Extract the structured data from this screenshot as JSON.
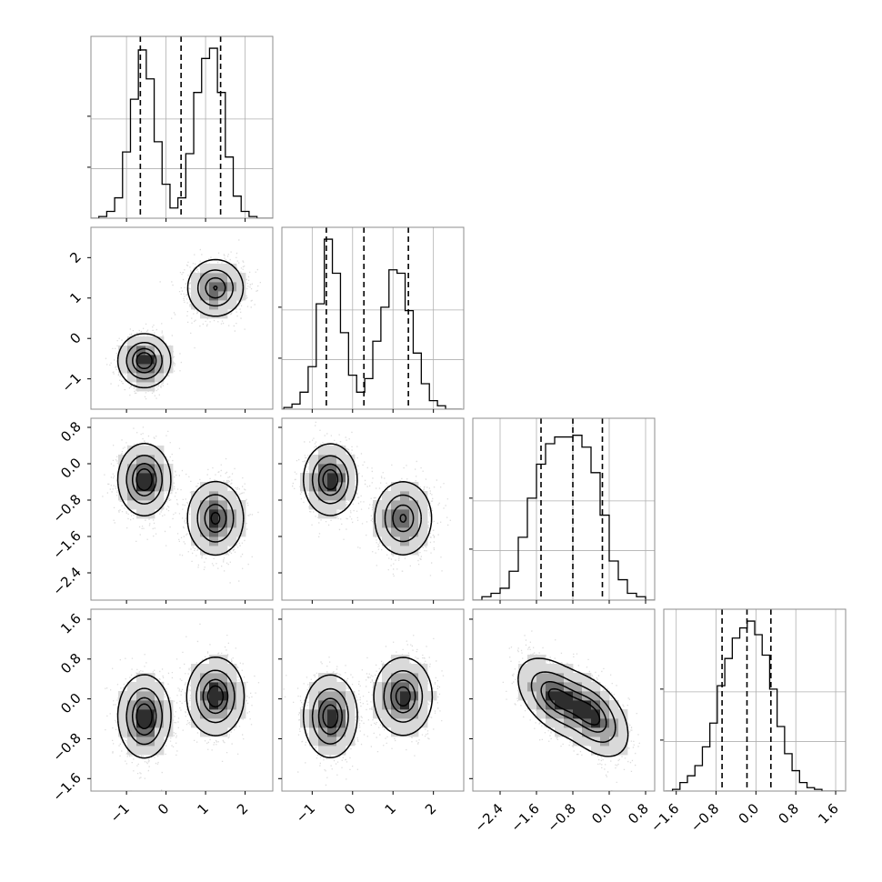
{
  "chart_data": {
    "type": "corner",
    "grid": true,
    "n_params": 4,
    "axis_ranges": [
      [
        -1.9,
        2.7
      ],
      [
        -1.75,
        2.75
      ],
      [
        -3.0,
        1.0
      ],
      [
        -1.85,
        1.8
      ]
    ],
    "ticks": [
      {
        "values": [
          -1,
          0,
          1,
          2
        ],
        "labels": [
          "−1",
          "0",
          "1",
          "2"
        ]
      },
      {
        "values": [
          -1,
          0,
          1,
          2
        ],
        "labels": [
          "−1",
          "0",
          "1",
          "2"
        ]
      },
      {
        "values": [
          -2.4,
          -1.6,
          -0.8,
          0.0,
          0.8
        ],
        "labels": [
          "−2.4",
          "−1.6",
          "−0.8",
          "0.0",
          "0.8"
        ]
      },
      {
        "values": [
          -1.6,
          -0.8,
          0.0,
          0.8,
          1.6
        ],
        "labels": [
          "−1.6",
          "−0.8",
          "0.0",
          "0.8",
          "1.6"
        ]
      }
    ],
    "quantiles": [
      [
        -0.65,
        0.38,
        1.38
      ],
      [
        -0.65,
        0.28,
        1.38
      ],
      [
        -1.5,
        -0.8,
        -0.15
      ],
      [
        -0.68,
        -0.18,
        0.3
      ]
    ],
    "modes": [
      {
        "weight": 0.5,
        "mean": [
          -0.55,
          -0.55,
          -0.35,
          -0.35
        ],
        "sd": [
          0.32,
          0.32,
          0.38,
          0.4
        ],
        "rho": {
          "0-1": 0.0,
          "0-2": 0.0,
          "0-3": 0.0,
          "1-2": 0.0,
          "1-3": 0.0,
          "2-3": -0.45
        }
      },
      {
        "weight": 0.5,
        "mean": [
          1.25,
          1.25,
          -1.2,
          0.05
        ],
        "sd": [
          0.35,
          0.35,
          0.4,
          0.38
        ],
        "rho": {
          "0-1": 0.0,
          "0-2": 0.0,
          "0-3": 0.0,
          "1-2": 0.0,
          "1-3": 0.0,
          "2-3": -0.45
        }
      }
    ],
    "histograms": [
      {
        "bin_centers": [
          -1.8,
          -1.6,
          -1.4,
          -1.2,
          -1.0,
          -0.8,
          -0.6,
          -0.4,
          -0.2,
          0.0,
          0.2,
          0.4,
          0.6,
          0.8,
          1.0,
          1.2,
          1.4,
          1.6,
          1.8,
          2.0,
          2.2,
          2.4,
          2.6
        ],
        "counts": [
          0.0,
          0.01,
          0.04,
          0.12,
          0.39,
          0.7,
          0.99,
          0.82,
          0.45,
          0.2,
          0.06,
          0.12,
          0.38,
          0.74,
          0.94,
          1.0,
          0.74,
          0.36,
          0.13,
          0.04,
          0.01,
          0.0,
          0.0
        ]
      },
      {
        "bin_centers": [
          -1.8,
          -1.6,
          -1.4,
          -1.2,
          -1.0,
          -0.8,
          -0.6,
          -0.4,
          -0.2,
          0.0,
          0.2,
          0.4,
          0.6,
          0.8,
          1.0,
          1.2,
          1.4,
          1.6,
          1.8,
          2.0,
          2.2,
          2.4,
          2.6
        ],
        "counts": [
          0.0,
          0.01,
          0.03,
          0.1,
          0.25,
          0.62,
          1.0,
          0.8,
          0.45,
          0.2,
          0.1,
          0.18,
          0.4,
          0.6,
          0.82,
          0.8,
          0.58,
          0.33,
          0.15,
          0.05,
          0.02,
          0.0,
          0.0
        ]
      },
      {
        "bin_centers": [
          -2.9,
          -2.7,
          -2.5,
          -2.3,
          -2.1,
          -1.9,
          -1.7,
          -1.5,
          -1.3,
          -1.1,
          -0.9,
          -0.7,
          -0.5,
          -0.3,
          -0.1,
          0.1,
          0.3,
          0.5,
          0.7,
          0.9
        ],
        "counts": [
          0.0,
          0.02,
          0.04,
          0.07,
          0.17,
          0.37,
          0.6,
          0.8,
          0.92,
          0.96,
          0.96,
          0.97,
          0.9,
          0.75,
          0.5,
          0.23,
          0.12,
          0.04,
          0.02,
          0.0
        ]
      },
      {
        "bin_centers": [
          -1.75,
          -1.6,
          -1.45,
          -1.3,
          -1.15,
          -1.0,
          -0.85,
          -0.7,
          -0.55,
          -0.4,
          -0.25,
          -0.1,
          0.05,
          0.2,
          0.35,
          0.5,
          0.65,
          0.8,
          0.95,
          1.1,
          1.25,
          1.4,
          1.55,
          1.7
        ],
        "counts": [
          0.0,
          0.01,
          0.05,
          0.09,
          0.15,
          0.26,
          0.4,
          0.62,
          0.78,
          0.9,
          0.96,
          1.0,
          0.92,
          0.8,
          0.6,
          0.38,
          0.22,
          0.12,
          0.05,
          0.02,
          0.01,
          0.0,
          0.0,
          0.0
        ]
      }
    ],
    "style": {
      "frame": "#8c8c8c",
      "grid": "#b0b0b0",
      "line": "#000000",
      "scatter": "#9a9a9a",
      "quantile_dash": "#000000"
    }
  }
}
